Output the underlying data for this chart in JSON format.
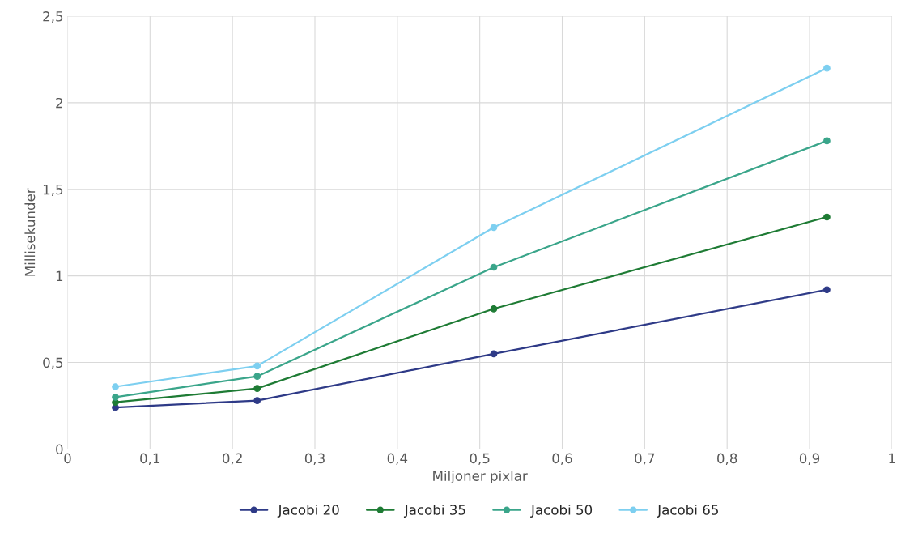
{
  "chart_data": {
    "type": "line",
    "xlabel": "Miljoner pixlar",
    "ylabel": "Millisekunder",
    "x": [
      0.058,
      0.23,
      0.517,
      0.921
    ],
    "series": [
      {
        "name": "Jacobi 20",
        "color": "#2e3a87",
        "values": [
          0.24,
          0.28,
          0.55,
          0.92
        ]
      },
      {
        "name": "Jacobi 35",
        "color": "#1e7b34",
        "values": [
          0.27,
          0.35,
          0.81,
          1.34
        ]
      },
      {
        "name": "Jacobi 50",
        "color": "#3aa58a",
        "values": [
          0.3,
          0.42,
          1.05,
          1.78
        ]
      },
      {
        "name": "Jacobi 65",
        "color": "#7dcff0",
        "values": [
          0.36,
          0.48,
          1.28,
          2.2
        ]
      }
    ],
    "xlim": [
      0,
      1
    ],
    "ylim": [
      0,
      2.5
    ],
    "xticks": [
      0,
      {
        "value": 0.1,
        "label": "0,1"
      },
      {
        "value": 0.2,
        "label": "0,2"
      },
      {
        "value": 0.3,
        "label": "0,3"
      },
      {
        "value": 0.4,
        "label": "0,4"
      },
      {
        "value": 0.5,
        "label": "0,5"
      },
      {
        "value": 0.6,
        "label": "0,6"
      },
      {
        "value": 0.7,
        "label": "0,7"
      },
      {
        "value": 0.8,
        "label": "0,8"
      },
      {
        "value": 0.9,
        "label": "0,9"
      },
      1
    ],
    "yticks": [
      0,
      {
        "value": 0.5,
        "label": "0,5"
      },
      1,
      {
        "value": 1.5,
        "label": "1,5"
      },
      2,
      {
        "value": 2.5,
        "label": "2,5"
      }
    ],
    "grid": true,
    "legend": "bottom",
    "marker": "circle",
    "line_style": "solid"
  }
}
